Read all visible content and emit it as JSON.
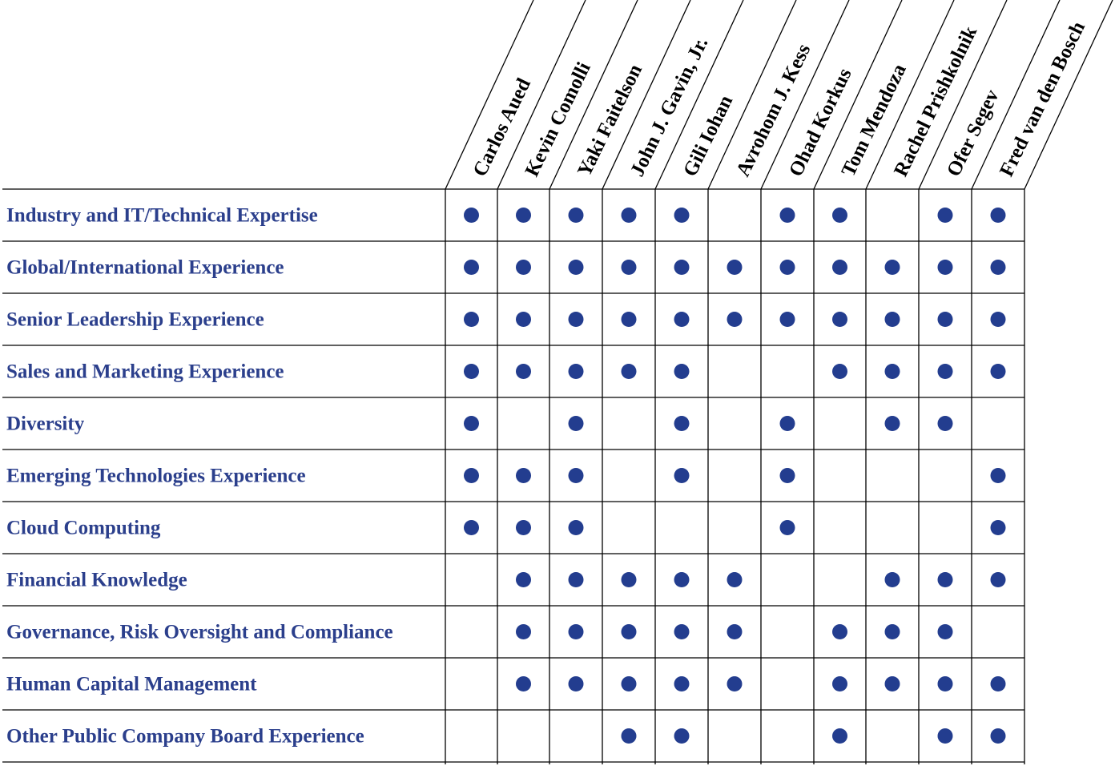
{
  "directors": [
    "Carlos Aued",
    "Kevin Comolli",
    "Yaki Faitelson",
    "John J. Gavin, Jr.",
    "Gili Iohan",
    "Avrohom J. Kess",
    "Ohad Korkus",
    "Tom Mendoza",
    "Rachel Prishkolnik",
    "Ofer Segev",
    "Fred van den Bosch"
  ],
  "skills": [
    {
      "label": "Industry and IT/Technical Expertise",
      "marks": [
        1,
        1,
        1,
        1,
        1,
        0,
        1,
        1,
        0,
        1,
        1
      ]
    },
    {
      "label": "Global/International Experience",
      "marks": [
        1,
        1,
        1,
        1,
        1,
        1,
        1,
        1,
        1,
        1,
        1
      ]
    },
    {
      "label": "Senior Leadership Experience",
      "marks": [
        1,
        1,
        1,
        1,
        1,
        1,
        1,
        1,
        1,
        1,
        1
      ]
    },
    {
      "label": "Sales and Marketing Experience",
      "marks": [
        1,
        1,
        1,
        1,
        1,
        0,
        0,
        1,
        1,
        1,
        1
      ]
    },
    {
      "label": "Diversity",
      "marks": [
        1,
        0,
        1,
        0,
        1,
        0,
        1,
        0,
        1,
        1,
        0
      ]
    },
    {
      "label": "Emerging Technologies Experience",
      "marks": [
        1,
        1,
        1,
        0,
        1,
        0,
        1,
        0,
        0,
        0,
        1
      ]
    },
    {
      "label": "Cloud Computing",
      "marks": [
        1,
        1,
        1,
        0,
        0,
        0,
        1,
        0,
        0,
        0,
        1
      ]
    },
    {
      "label": "Financial Knowledge",
      "marks": [
        0,
        1,
        1,
        1,
        1,
        1,
        0,
        0,
        1,
        1,
        1
      ]
    },
    {
      "label": "Governance, Risk Oversight and Compliance",
      "marks": [
        0,
        1,
        1,
        1,
        1,
        1,
        0,
        1,
        1,
        1,
        0
      ]
    },
    {
      "label": "Human Capital Management",
      "marks": [
        0,
        1,
        1,
        1,
        1,
        1,
        0,
        1,
        1,
        1,
        1
      ]
    },
    {
      "label": "Other Public Company Board Experience",
      "marks": [
        0,
        0,
        0,
        1,
        1,
        0,
        0,
        1,
        0,
        1,
        1
      ]
    }
  ],
  "colors": {
    "skill_text": "#2b3f8c",
    "dot": "#233d8f",
    "grid": "#000000"
  }
}
